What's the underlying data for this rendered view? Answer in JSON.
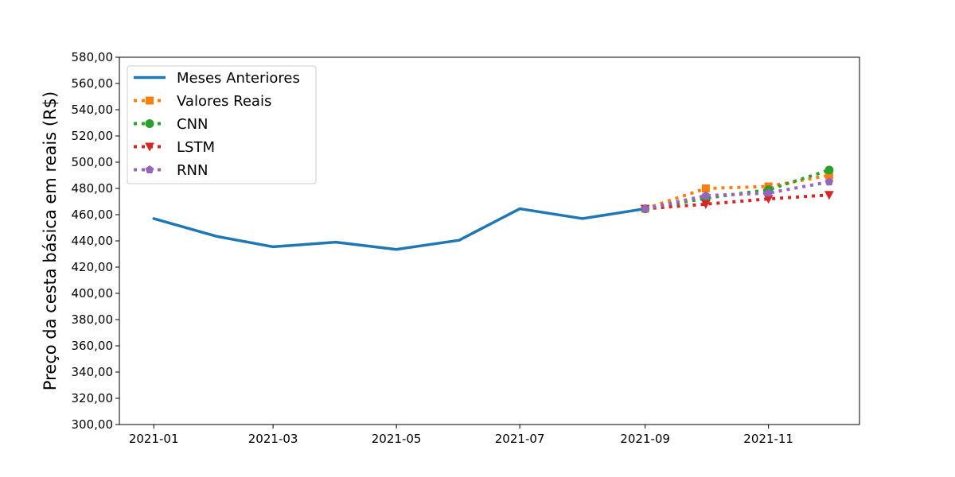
{
  "chart_data": {
    "type": "line",
    "xlabel": "",
    "ylabel": "Preço da cesta básica em reais (R$)",
    "ylim": [
      300,
      580
    ],
    "y_ticks": [
      "300,00",
      "320,00",
      "340,00",
      "360,00",
      "380,00",
      "400,00",
      "420,00",
      "440,00",
      "460,00",
      "480,00",
      "500,00",
      "520,00",
      "540,00",
      "560,00",
      "580,00"
    ],
    "x_ticks": [
      "2021-01",
      "2021-03",
      "2021-05",
      "2021-07",
      "2021-09",
      "2021-11"
    ],
    "x_range": [
      "2020-12-15",
      "2021-12-16"
    ],
    "grid": false,
    "legend_position": "top-left",
    "series": [
      {
        "name": "Meses Anteriores",
        "color": "#1f77b4",
        "style": "solid",
        "marker": "none",
        "x": [
          "2021-01-01",
          "2021-02-01",
          "2021-03-01",
          "2021-04-01",
          "2021-05-01",
          "2021-06-01",
          "2021-07-01",
          "2021-08-01",
          "2021-09-01"
        ],
        "values": [
          457,
          443.5,
          435.5,
          439,
          433.5,
          440.5,
          464.5,
          457,
          464.5
        ]
      },
      {
        "name": "Valores Reais",
        "color": "#ff7f0e",
        "style": "dotted",
        "marker": "square",
        "x": [
          "2021-09-01",
          "2021-10-01",
          "2021-11-01",
          "2021-12-01"
        ],
        "values": [
          464.5,
          480,
          481.5,
          490
        ]
      },
      {
        "name": "CNN",
        "color": "#2ca02c",
        "style": "dotted",
        "marker": "circle",
        "x": [
          "2021-09-01",
          "2021-10-01",
          "2021-11-01",
          "2021-12-01"
        ],
        "values": [
          464.5,
          472.5,
          479,
          494
        ]
      },
      {
        "name": "LSTM",
        "color": "#d62728",
        "style": "dotted",
        "marker": "triangle-down",
        "x": [
          "2021-09-01",
          "2021-10-01",
          "2021-11-01",
          "2021-12-01"
        ],
        "values": [
          464.5,
          468,
          472,
          475
        ]
      },
      {
        "name": "RNN",
        "color": "#9467bd",
        "style": "dotted",
        "marker": "pentagon",
        "x": [
          "2021-09-01",
          "2021-10-01",
          "2021-11-01",
          "2021-12-01"
        ],
        "values": [
          464.5,
          474.5,
          476.5,
          485
        ]
      }
    ]
  }
}
